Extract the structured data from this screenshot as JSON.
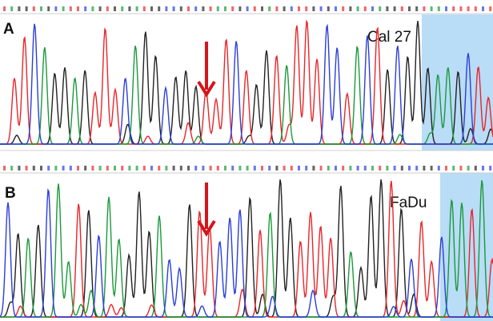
{
  "panels": [
    {
      "label": "A",
      "sample": "Cal 27"
    },
    {
      "label": "B",
      "sample": "FaDu"
    }
  ]
}
